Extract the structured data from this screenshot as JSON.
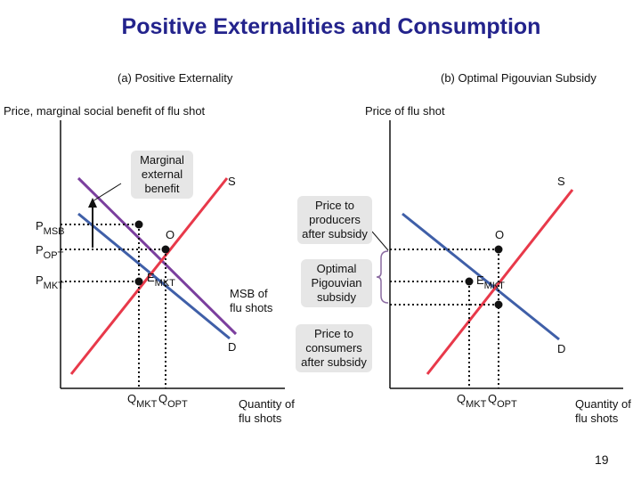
{
  "title": "Positive Externalities and Consumption",
  "panel_a": {
    "title": "(a) Positive Externality",
    "y_axis_label": "Price, marginal social benefit of flu shot",
    "x_axis_label_line1": "Quantity of",
    "x_axis_label_line2": "flu shots",
    "callout_line1": "Marginal",
    "callout_line2": "external",
    "callout_line3": "benefit",
    "supply_label": "S",
    "demand_label": "D",
    "msb_label_line1": "MSB of",
    "msb_label_line2": "flu shots",
    "point_o": "O",
    "point_e_main": "E",
    "point_e_sub": "MKT",
    "p_msb_main": "P",
    "p_msb_sub": "MSB",
    "p_opt_main": "P",
    "p_opt_sub": "OPT",
    "p_mkt_main": "P",
    "p_mkt_sub": "MKT",
    "q_mkt_main": "Q",
    "q_mkt_sub": "MKT",
    "q_opt_main": "Q",
    "q_opt_sub": "OPT"
  },
  "panel_b": {
    "title": "(b) Optimal Pigouvian Subsidy",
    "y_axis_label": "Price of flu shot",
    "x_axis_label_line1": "Quantity of",
    "x_axis_label_line2": "flu shots",
    "producers_line1": "Price to",
    "producers_line2": "producers",
    "producers_line3": "after subsidy",
    "subsidy_line1": "Optimal",
    "subsidy_line2": "Pigouvian",
    "subsidy_line3": "subsidy",
    "consumers_line1": "Price to",
    "consumers_line2": "consumers",
    "consumers_line3": "after subsidy",
    "supply_label": "S",
    "demand_label": "D",
    "point_o": "O",
    "point_e_main": "E",
    "point_e_sub": "MKT",
    "q_mkt_main": "Q",
    "q_mkt_sub": "MKT",
    "q_opt_main": "Q",
    "q_opt_sub": "OPT"
  },
  "page_number": "19",
  "colors": {
    "title": "#23238c",
    "supply": "#e8394a",
    "demand": "#3f5fa8",
    "msb": "#7b3f9e",
    "callout_bg": "#e6e6e6"
  }
}
